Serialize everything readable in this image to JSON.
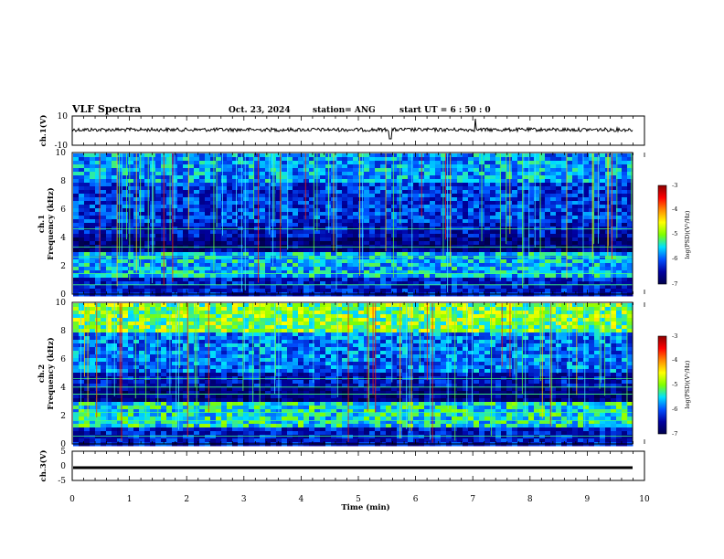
{
  "header": {
    "title": "VLF Spectra",
    "date": "Oct. 23, 2024",
    "station": "station= ANG",
    "start": "start  UT  =   6  : 50 : 0"
  },
  "colorbar": {
    "label": "log(PSD)(V²/Hz)",
    "ticks": [
      "-3",
      "-4",
      "-5",
      "-6",
      "-7"
    ],
    "colors": [
      "#8b0000",
      "#ff0000",
      "#ff8c00",
      "#ffff00",
      "#7fff00",
      "#00e0ff",
      "#0050ff",
      "#0000a0",
      "#00004a"
    ]
  },
  "chart_data": [
    {
      "type": "line",
      "name": "ch1-waveform",
      "ylabel": "ch.1(V)",
      "ylim": [
        -10,
        10
      ],
      "ytick_labels": [
        "10",
        "-10"
      ],
      "description_values": {
        "baseline": 0,
        "spike_time_min": [
          5.55,
          7.05
        ]
      }
    },
    {
      "type": "heatmap",
      "name": "ch1-spectrogram",
      "ylabel": "ch.1",
      "ylabel2": "Frequency  (kHz)",
      "ylim": [
        0,
        10
      ],
      "ytick_labels": [
        "0",
        "2",
        "4",
        "6",
        "8",
        "10"
      ],
      "zlim": [
        -7,
        -3
      ]
    },
    {
      "type": "heatmap",
      "name": "ch2-spectrogram",
      "ylabel": "ch.2",
      "ylabel2": "Frequency  (kHz)",
      "ylim": [
        0,
        10
      ],
      "ytick_labels": [
        "0",
        "2",
        "4",
        "6",
        "8",
        "10"
      ],
      "zlim": [
        -7,
        -3
      ]
    },
    {
      "type": "line",
      "name": "ch3-waveform",
      "ylabel": "ch.3(V)",
      "ylim": [
        -5,
        5
      ],
      "ytick_labels": [
        "5",
        "0",
        "-5"
      ],
      "values": {
        "level": -1.2
      }
    }
  ],
  "xaxis": {
    "label": "Time  (min)",
    "xlim": [
      0,
      10
    ],
    "tick_labels": [
      "0",
      "1",
      "2",
      "3",
      "4",
      "5",
      "6",
      "7",
      "8",
      "9",
      "10"
    ]
  }
}
